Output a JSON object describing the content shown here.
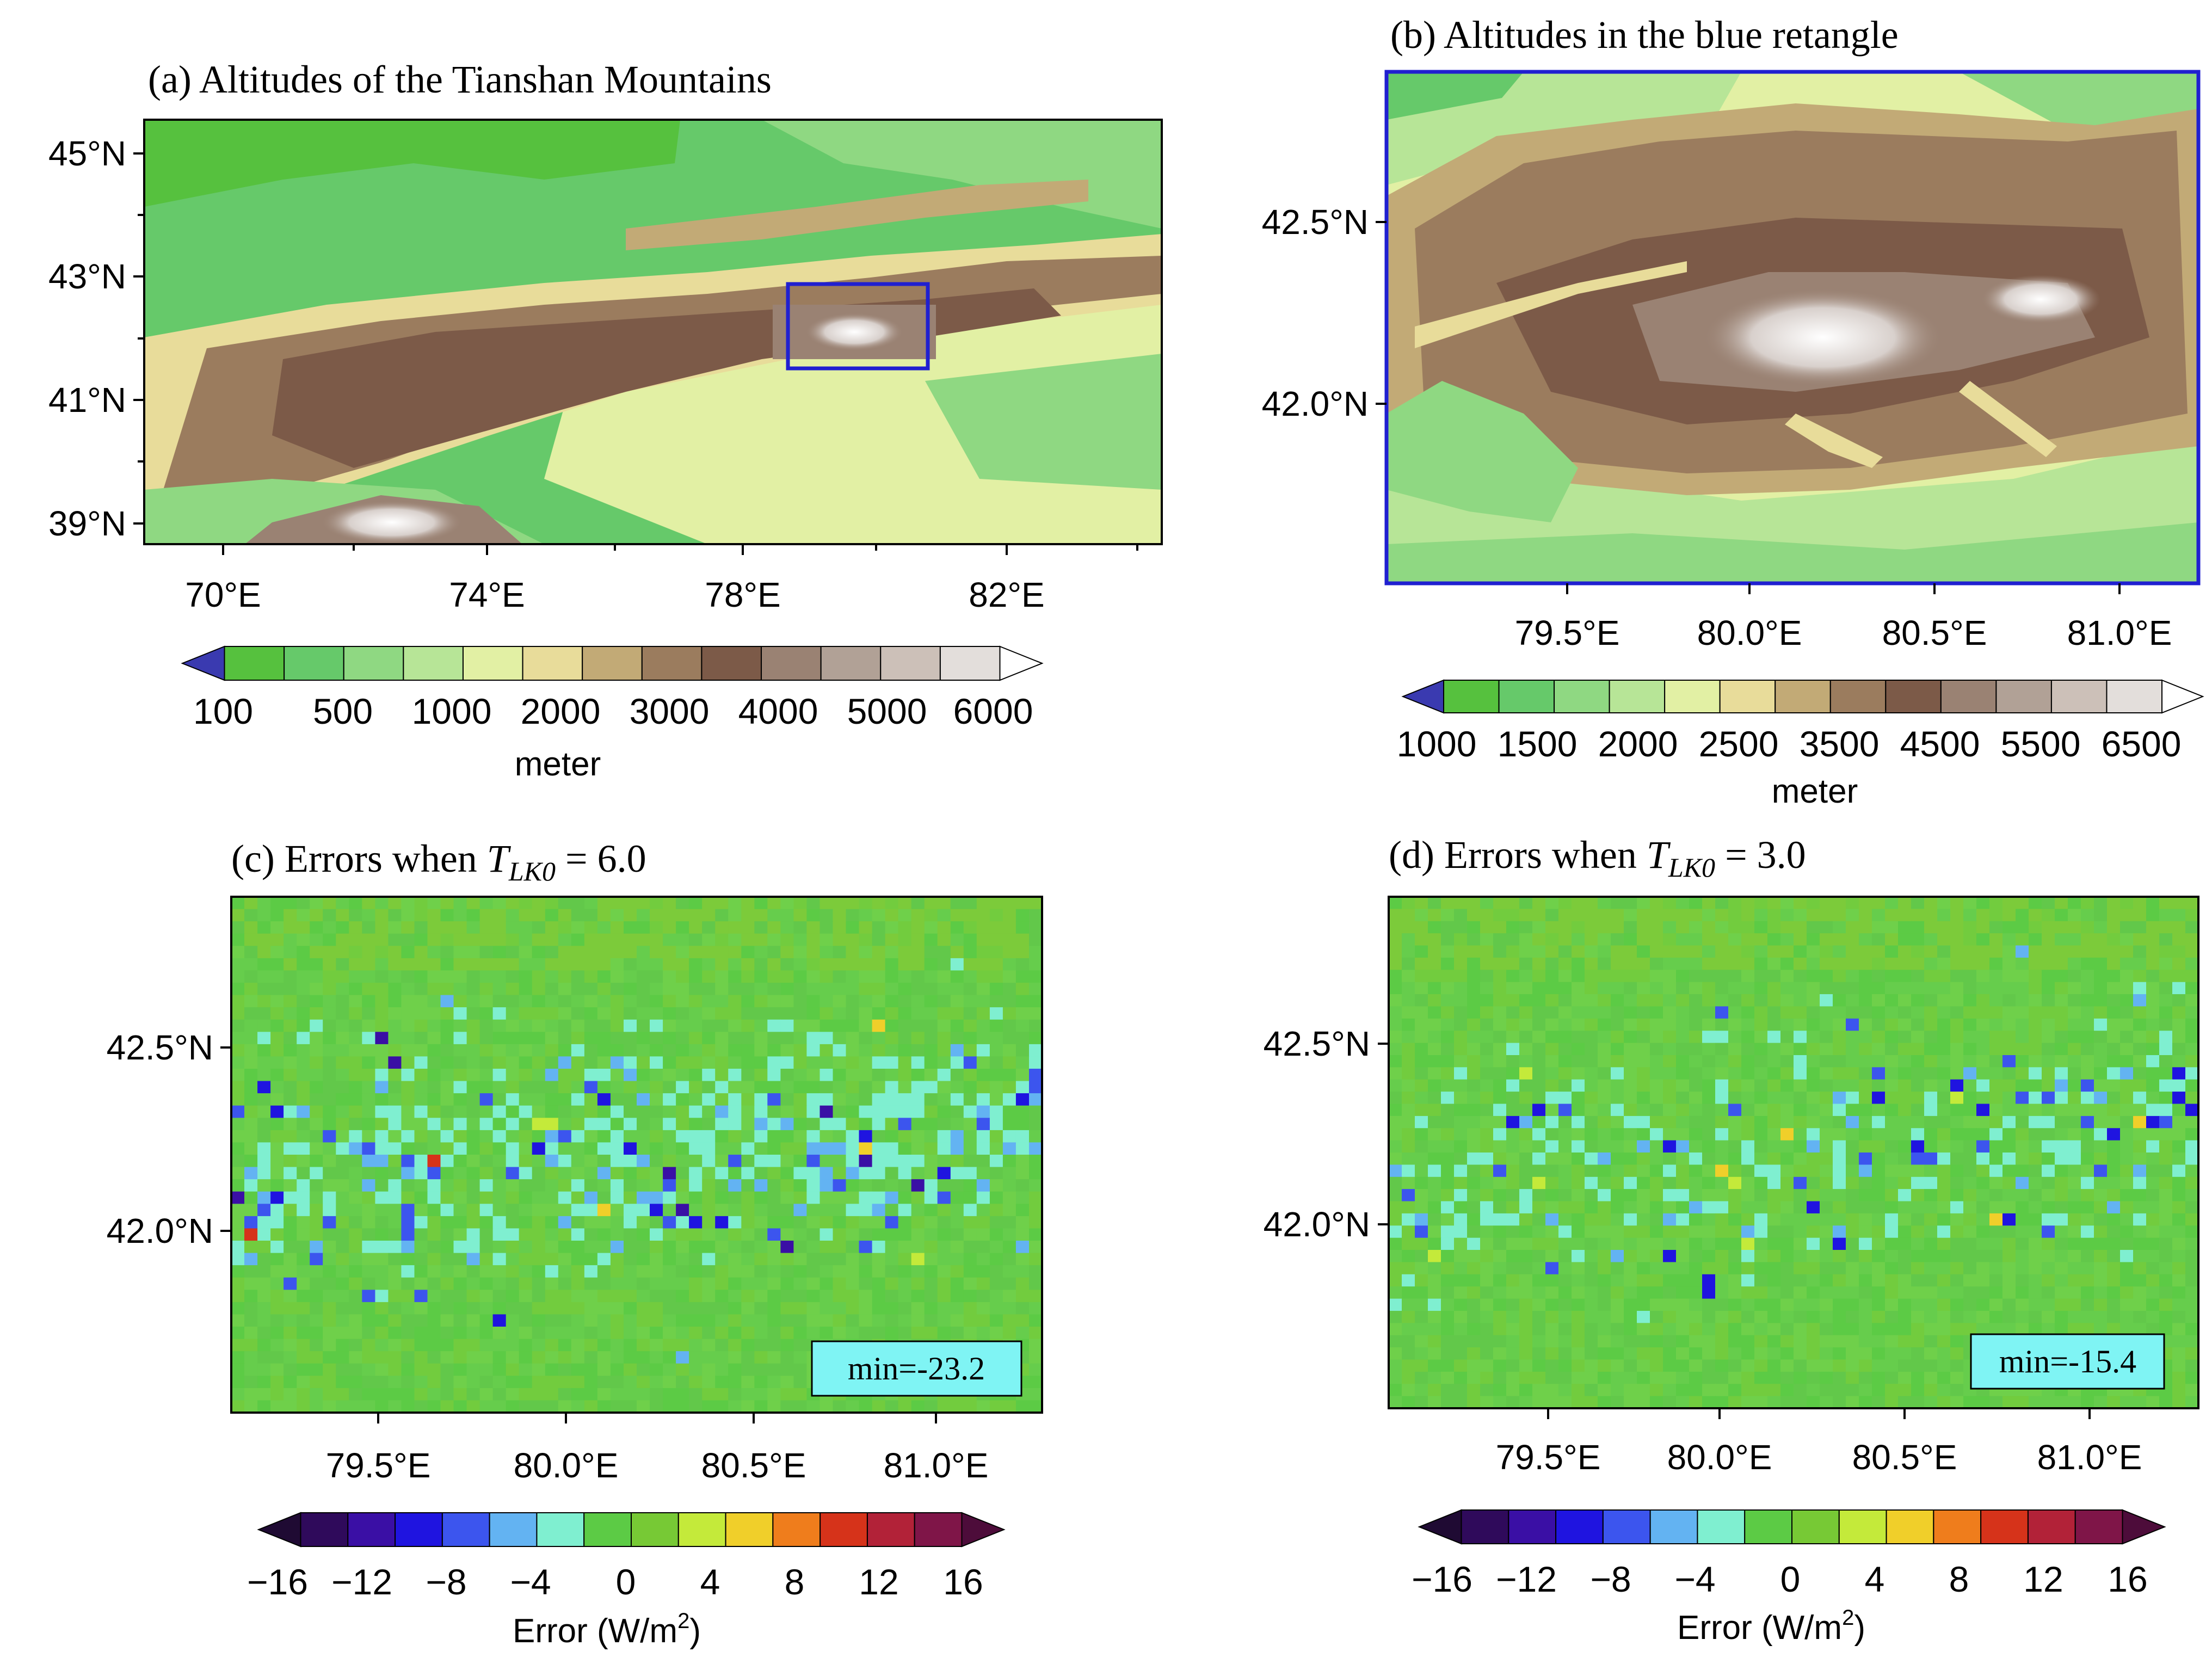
{
  "colors": {
    "elevation": [
      "#3a3ab0",
      "#56c13e",
      "#66c96a",
      "#8fd882",
      "#b7e597",
      "#e2f0a4",
      "#e8dc9a",
      "#c2aa76",
      "#9b7c5e",
      "#7c5a48",
      "#9a8273",
      "#b1a196",
      "#ccc0b8",
      "#e3dedb",
      "#ffffff"
    ],
    "error": [
      "#1f0a33",
      "#2f0a5b",
      "#3a0fa5",
      "#1f14e0",
      "#3c55ee",
      "#63b3f2",
      "#7fefd0",
      "#5ccb45",
      "#77c935",
      "#c4ea3a",
      "#f0cf2a",
      "#ef7d1c",
      "#d6331a",
      "#b22238",
      "#7f1548",
      "#4d0c3a"
    ],
    "highlight_box": "#2020d0",
    "min_badge": "#7ff4f4"
  },
  "panels": {
    "a": {
      "title": "(a)  Altitudes of the Tianshan Mountains",
      "y_ticks": [
        "45°N",
        "43°N",
        "41°N",
        "39°N"
      ],
      "x_ticks": [
        "70°E",
        "74°E",
        "78°E",
        "82°E"
      ],
      "colorbar_labels": [
        "100",
        "500",
        "1000",
        "2000",
        "3000",
        "4000",
        "5000",
        "6000"
      ],
      "colorbar_unit": "meter"
    },
    "b": {
      "title": "(b)  Altitudes in the blue retangle",
      "y_ticks": [
        "42.5°N",
        "42.0°N"
      ],
      "x_ticks": [
        "79.5°E",
        "80.0°E",
        "80.5°E",
        "81.0°E"
      ],
      "colorbar_labels": [
        "1000",
        "1500",
        "2000",
        "2500",
        "3500",
        "4500",
        "5500",
        "6500"
      ],
      "colorbar_unit": "meter"
    },
    "c": {
      "title_prefix": "(c) Errors when ",
      "title_symbol": "T",
      "title_subscript": "LK0",
      "title_value": " = 6.0",
      "y_ticks": [
        "42.5°N",
        "42.0°N"
      ],
      "x_ticks": [
        "79.5°E",
        "80.0°E",
        "80.5°E",
        "81.0°E"
      ],
      "min_label": "min=-23.2",
      "colorbar_labels": [
        "−16",
        "−12",
        "−8",
        "−4",
        "0",
        "4",
        "8",
        "12",
        "16"
      ],
      "colorbar_unit": "Error (W/m",
      "colorbar_unit_sup": "2",
      "colorbar_unit_end": ")"
    },
    "d": {
      "title_prefix": "(d) Errors when ",
      "title_symbol": "T",
      "title_subscript": "LK0",
      "title_value": " = 3.0",
      "y_ticks": [
        "42.5°N",
        "42.0°N"
      ],
      "x_ticks": [
        "79.5°E",
        "80.0°E",
        "80.5°E",
        "81.0°E"
      ],
      "min_label": "min=-15.4",
      "colorbar_labels": [
        "−16",
        "−12",
        "−8",
        "−4",
        "0",
        "4",
        "8",
        "12",
        "16"
      ],
      "colorbar_unit": "Error (W/m",
      "colorbar_unit_sup": "2",
      "colorbar_unit_end": ")"
    }
  }
}
